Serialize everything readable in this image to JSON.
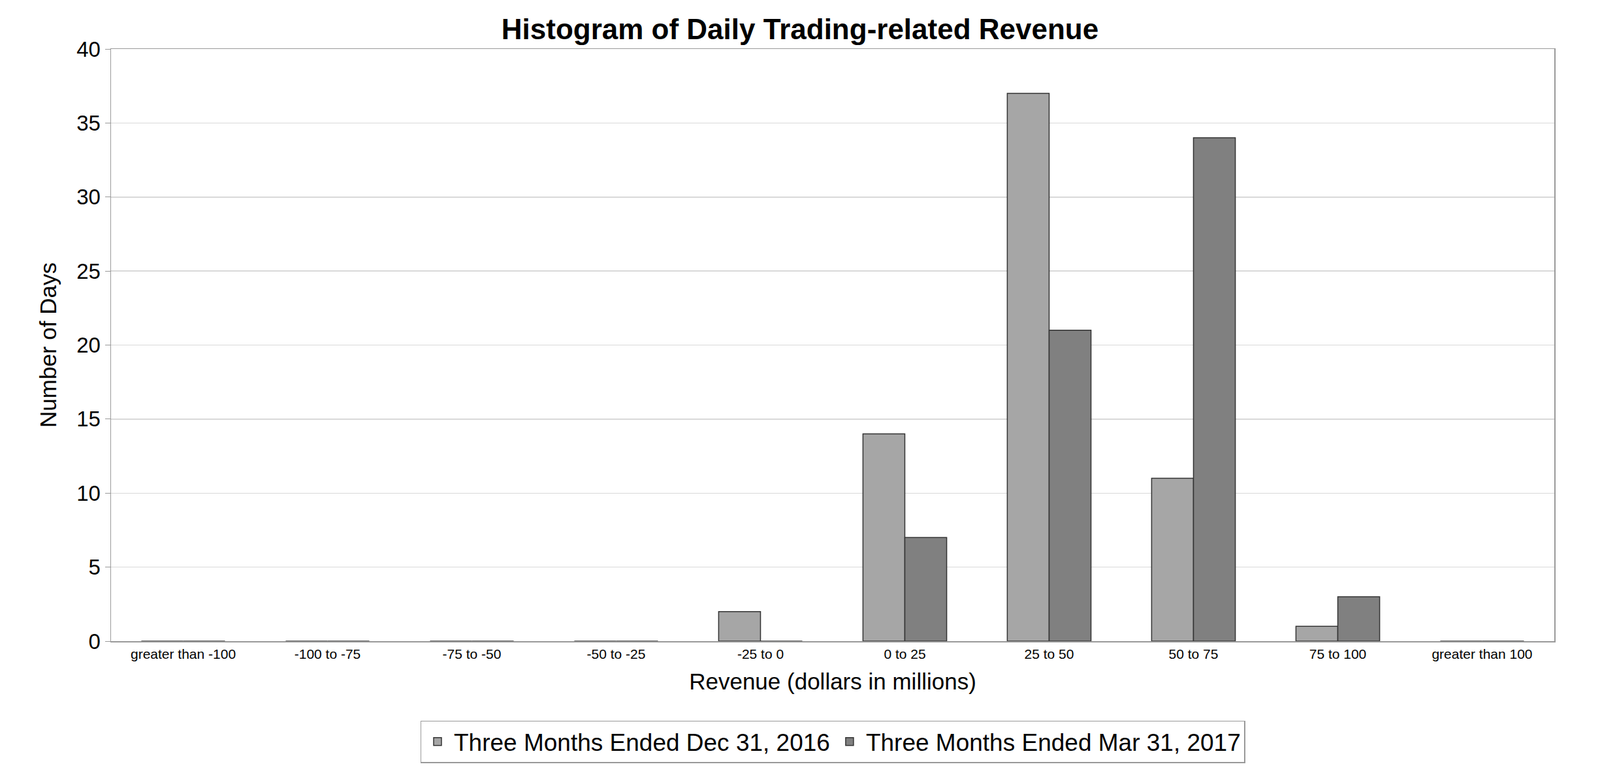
{
  "chart_data": {
    "type": "bar",
    "title": "Histogram of Daily Trading-related Revenue",
    "x_label": "Revenue (dollars in millions)",
    "y_label": "Number of Days",
    "categories": [
      "greater than -100",
      "-100 to -75",
      "-75 to -50",
      "-50 to -25",
      "-25 to 0",
      "0 to 25",
      "25 to 50",
      "50 to 75",
      "75 to 100",
      "greater than 100"
    ],
    "series": [
      {
        "name": "Three Months Ended Dec 31, 2016",
        "color": "#a6a6a6",
        "values": [
          0,
          0,
          0,
          0,
          2,
          14,
          37,
          11,
          1,
          0
        ]
      },
      {
        "name": "Three Months Ended Mar 31, 2017",
        "color": "#808080",
        "values": [
          0,
          0,
          0,
          0,
          0,
          7,
          21,
          34,
          3,
          0
        ]
      }
    ],
    "ylim": [
      0,
      40
    ],
    "yticks": [
      0,
      5,
      10,
      15,
      20,
      25,
      30,
      35,
      40
    ],
    "grid": true,
    "legend": "bottom"
  }
}
